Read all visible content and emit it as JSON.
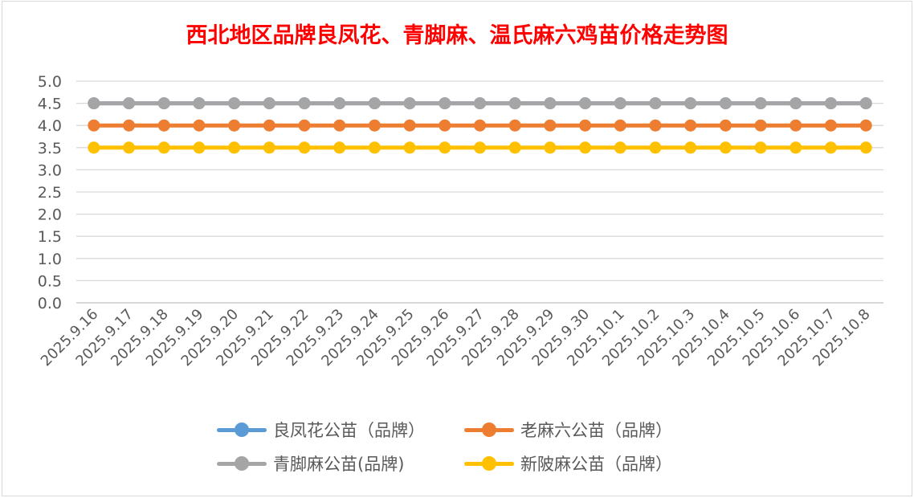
{
  "chart_data": {
    "type": "line",
    "title": "西北地区品牌良凤花、青脚麻、温氏麻六鸡苗价格走势图",
    "xlabel": "",
    "ylabel": "",
    "ylim": [
      0,
      5
    ],
    "yticks": [
      "0.0",
      "0.5",
      "1.0",
      "1.5",
      "2.0",
      "2.5",
      "3.0",
      "3.5",
      "4.0",
      "4.5",
      "5.0"
    ],
    "grid": true,
    "legend_position": "bottom",
    "categories": [
      "2025.9.16",
      "2025.9.17",
      "2025.9.18",
      "2025.9.19",
      "2025.9.20",
      "2025.9.21",
      "2025.9.22",
      "2025.9.23",
      "2025.9.24",
      "2025.9.25",
      "2025.9.26",
      "2025.9.27",
      "2025.9.28",
      "2025.9.29",
      "2025.9.30",
      "2025.10.1",
      "2025.10.2",
      "2025.10.3",
      "2025.10.4",
      "2025.10.5",
      "2025.10.6",
      "2025.10.7",
      "2025.10.8"
    ],
    "series": [
      {
        "name": "良凤花公苗（品牌）",
        "color": "#5b9bd5",
        "values": [
          4.5,
          4.5,
          4.5,
          4.5,
          4.5,
          4.5,
          4.5,
          4.5,
          4.5,
          4.5,
          4.5,
          4.5,
          4.5,
          4.5,
          4.5,
          4.5,
          4.5,
          4.5,
          4.5,
          4.5,
          4.5,
          4.5,
          4.5
        ]
      },
      {
        "name": "老麻六公苗（品牌）",
        "color": "#ed7d31",
        "values": [
          4,
          4,
          4,
          4,
          4,
          4,
          4,
          4,
          4,
          4,
          4,
          4,
          4,
          4,
          4,
          4,
          4,
          4,
          4,
          4,
          4,
          4,
          4
        ]
      },
      {
        "name": "青脚麻公苗(品牌)",
        "color": "#a5a5a5",
        "values": [
          4.5,
          4.5,
          4.5,
          4.5,
          4.5,
          4.5,
          4.5,
          4.5,
          4.5,
          4.5,
          4.5,
          4.5,
          4.5,
          4.5,
          4.5,
          4.5,
          4.5,
          4.5,
          4.5,
          4.5,
          4.5,
          4.5,
          4.5
        ]
      },
      {
        "name": "新陂麻公苗（品牌）",
        "color": "#ffc000",
        "values": [
          3.5,
          3.5,
          3.5,
          3.5,
          3.5,
          3.5,
          3.5,
          3.5,
          3.5,
          3.5,
          3.5,
          3.5,
          3.5,
          3.5,
          3.5,
          3.5,
          3.5,
          3.5,
          3.5,
          3.5,
          3.5,
          3.5,
          3.5
        ]
      }
    ]
  }
}
